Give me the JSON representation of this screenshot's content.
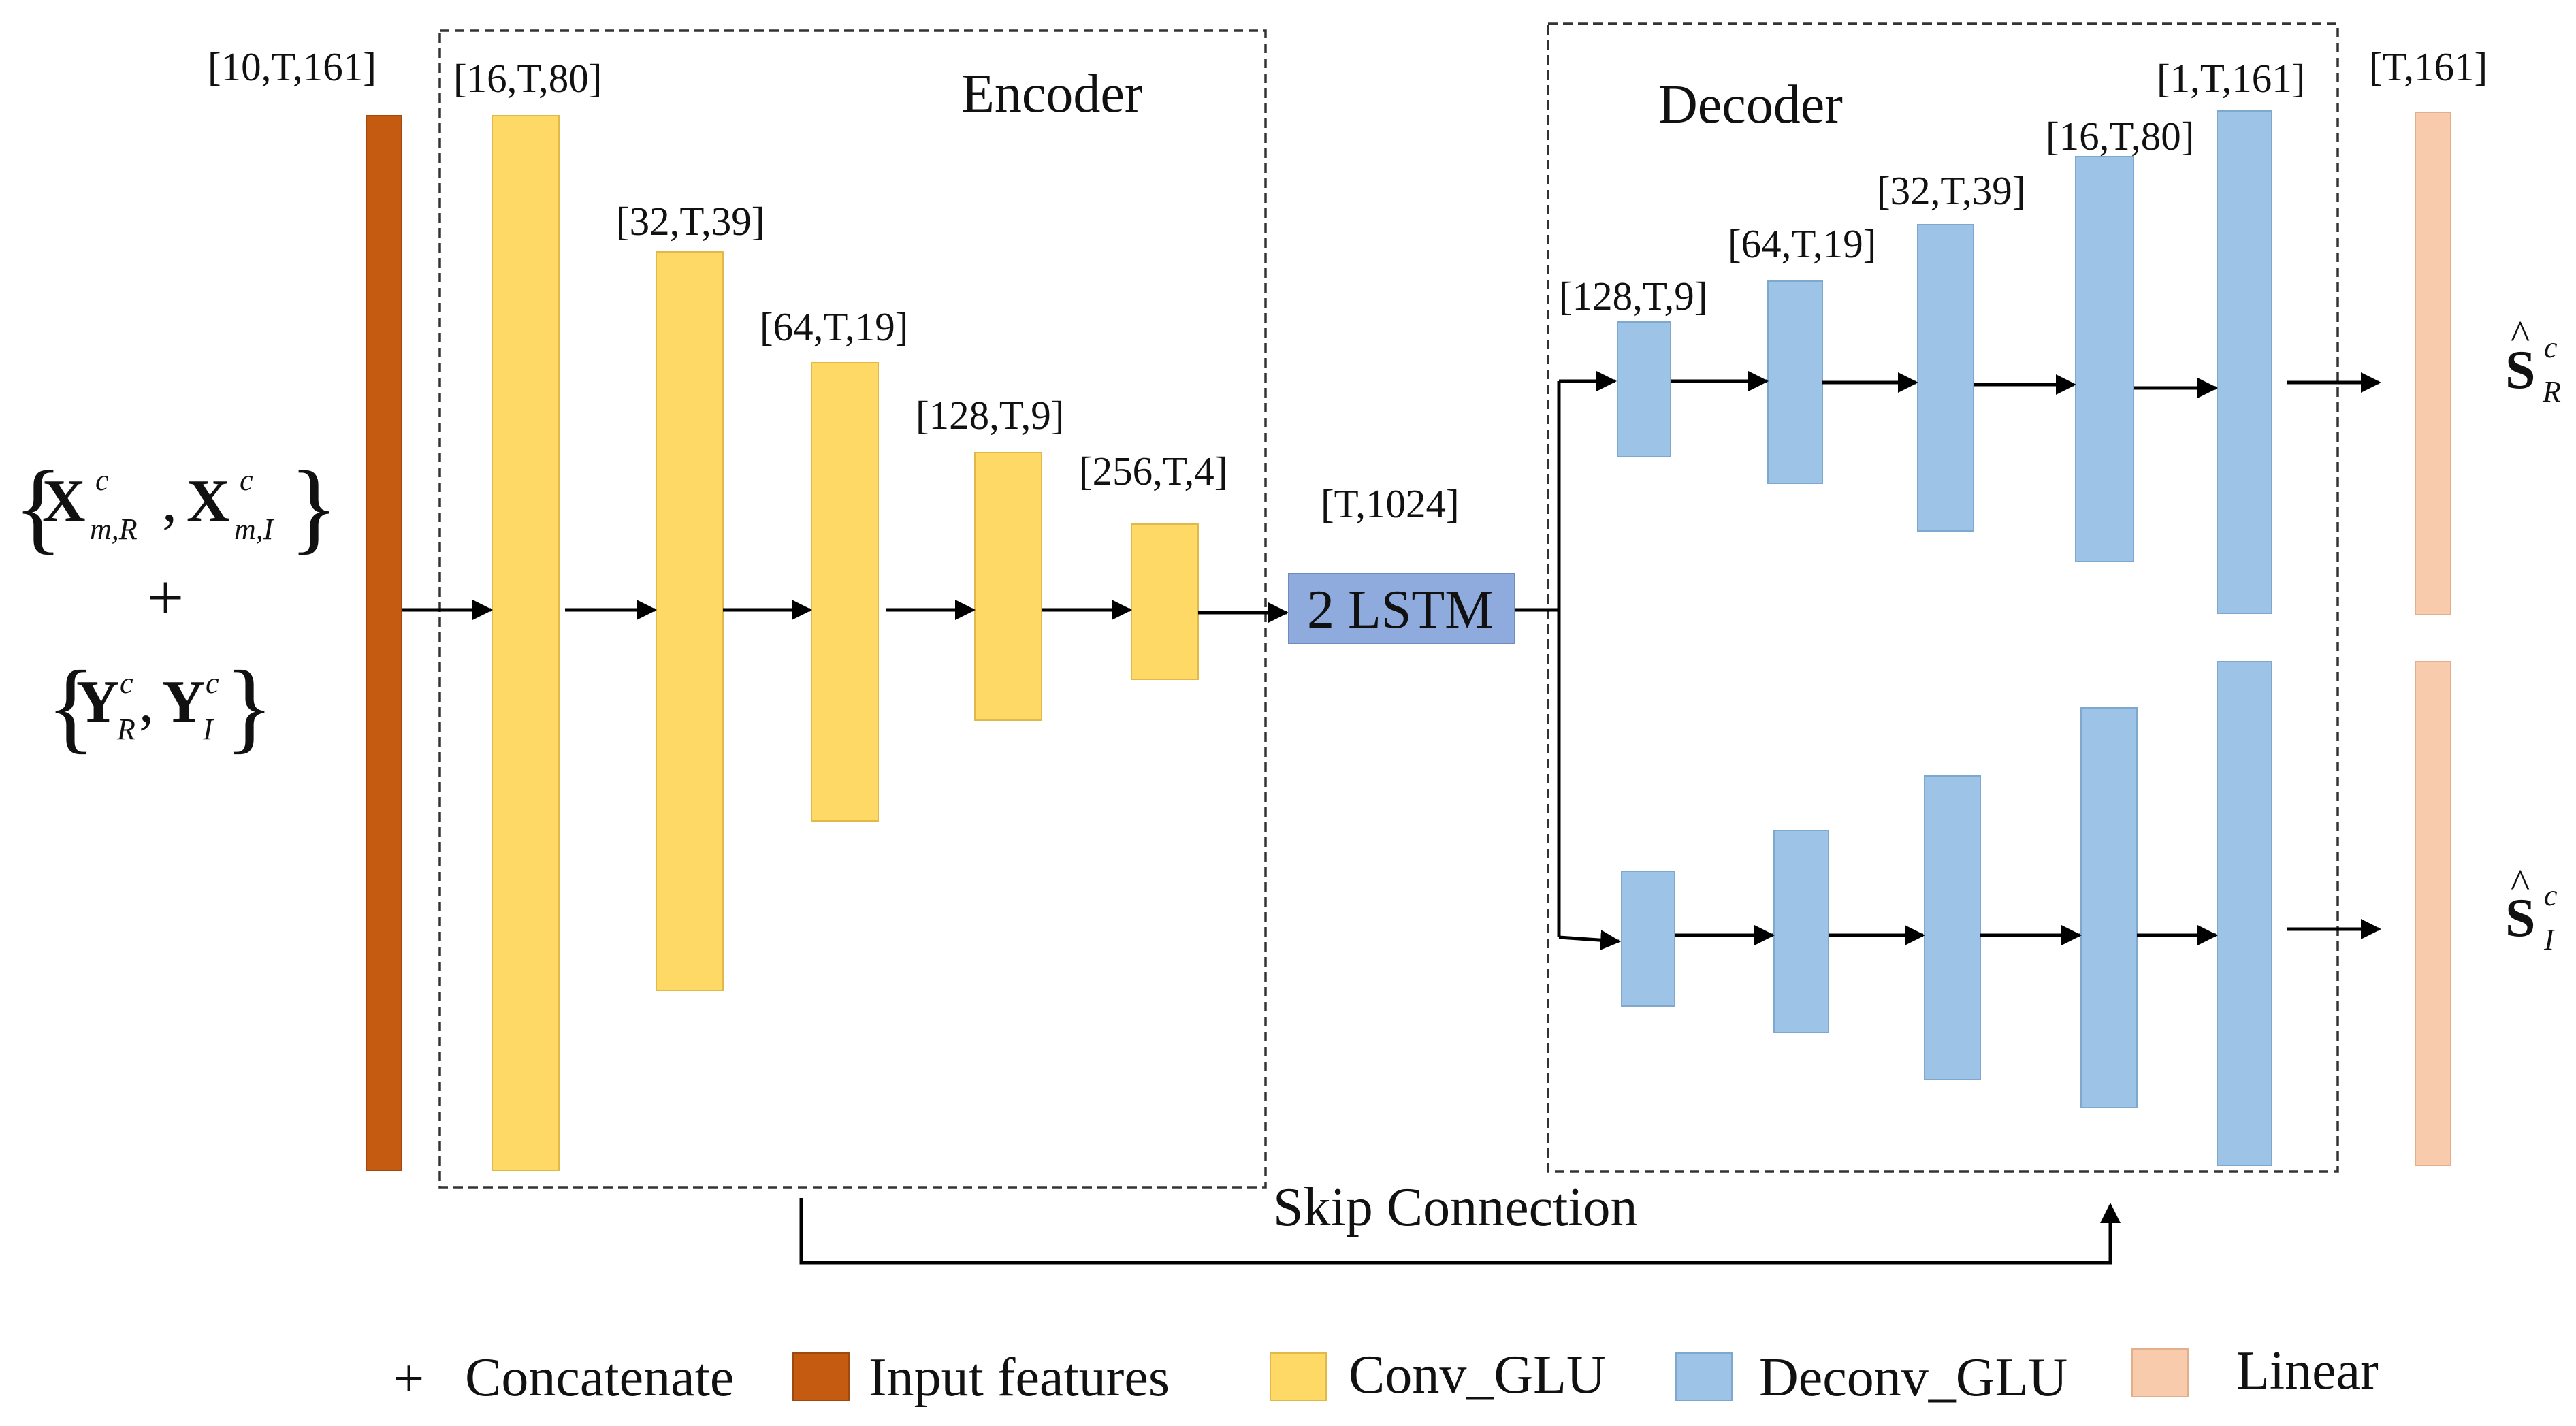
{
  "encoder": {
    "title": "Encoder",
    "shapes": [
      "[16,T,80]",
      "[32,T,39]",
      "[64,T,19]",
      "[128,T,9]",
      "[256,T,4]"
    ]
  },
  "decoder": {
    "title": "Decoder",
    "shapes": [
      "[128,T,9]",
      "[64,T,19]",
      "[32,T,39]",
      "[16,T,80]",
      "[1,T,161]"
    ]
  },
  "input": {
    "shape": "[10,T,161]",
    "formula": {
      "x_sym": "X",
      "superscript": "c",
      "x_sub_real": "m,R",
      "x_sub_imag": "m,I",
      "plus": "+",
      "y_sym": "Y",
      "y_sub_real": "R",
      "y_sub_imag": "I"
    }
  },
  "lstm": {
    "label": "2 LSTM",
    "shape": "[T,1024]"
  },
  "output": {
    "shape": "[T,161]",
    "symbol": "S",
    "hat": "^",
    "superscript": "c",
    "sub_real": "R",
    "sub_imag": "I"
  },
  "skip_connection_label": "Skip Connection",
  "legend": [
    {
      "symbol": "+",
      "label": "Concatenate"
    },
    {
      "color": "#C55A11",
      "label": "Input features"
    },
    {
      "color": "#FFD966",
      "label": "Conv_GLU"
    },
    {
      "color": "#9DC3E6",
      "label": "Deconv_GLU"
    },
    {
      "color": "#F8CBAD",
      "label": "Linear"
    }
  ],
  "colors": {
    "input_features": "#C55A11",
    "conv_glu": "#FFD966",
    "deconv_glu": "#9DC3E6",
    "linear": "#F8CBAD",
    "lstm": "#8FAADC"
  }
}
